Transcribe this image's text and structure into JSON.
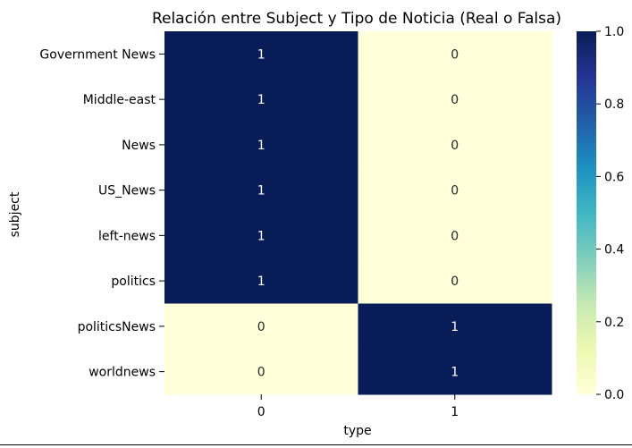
{
  "chart_data": {
    "type": "heatmap",
    "title": "Relación entre Subject y Tipo de Noticia (Real o Falsa)",
    "xlabel": "type",
    "ylabel": "subject",
    "x_categories": [
      "0",
      "1"
    ],
    "y_categories": [
      "Government News",
      "Middle-east",
      "News",
      "US_News",
      "left-news",
      "politics",
      "politicsNews",
      "worldnews"
    ],
    "values": [
      [
        1,
        0
      ],
      [
        1,
        0
      ],
      [
        1,
        0
      ],
      [
        1,
        0
      ],
      [
        1,
        0
      ],
      [
        1,
        0
      ],
      [
        0,
        1
      ],
      [
        0,
        1
      ]
    ],
    "cell_labels": [
      [
        "1",
        "0"
      ],
      [
        "1",
        "0"
      ],
      [
        "1",
        "0"
      ],
      [
        "1",
        "0"
      ],
      [
        "1",
        "0"
      ],
      [
        "1",
        "0"
      ],
      [
        "0",
        "1"
      ],
      [
        "0",
        "1"
      ]
    ],
    "colorbar": {
      "range": [
        0.0,
        1.0
      ],
      "ticks": [
        0.0,
        0.2,
        0.4,
        0.6,
        0.8,
        1.0
      ],
      "tick_labels": [
        "0.0",
        "0.2",
        "0.4",
        "0.6",
        "0.8",
        "1.0"
      ],
      "colormap": "YlGnBu",
      "stops": [
        "#ffffd9",
        "#edf8b1",
        "#c7e9b4",
        "#7fcdbb",
        "#41b6c4",
        "#1d91c0",
        "#225ea8",
        "#253494",
        "#081d58"
      ]
    },
    "text_colors": {
      "on_dark": "#ffffff",
      "on_light": "#262626"
    }
  }
}
